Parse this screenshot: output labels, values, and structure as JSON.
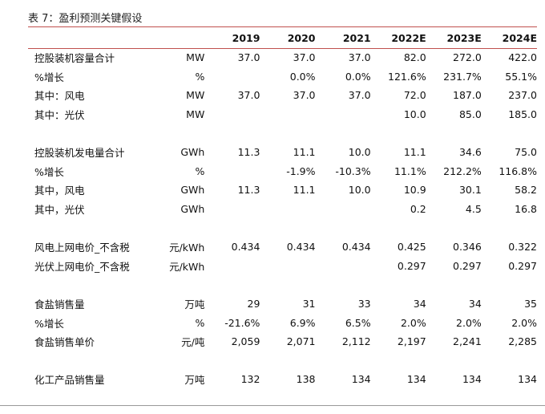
{
  "title": "表 7：盈利预测关键假设",
  "headers": [
    "2019",
    "2020",
    "2021",
    "2022E",
    "2023E",
    "2024E"
  ],
  "groups": [
    [
      {
        "label": "控股装机容量合计",
        "unit": "MW",
        "values": [
          "37.0",
          "37.0",
          "37.0",
          "82.0",
          "272.0",
          "422.0"
        ]
      },
      {
        "label": "%增长",
        "unit": "%",
        "values": [
          "",
          "0.0%",
          "0.0%",
          "121.6%",
          "231.7%",
          "55.1%"
        ]
      },
      {
        "label": "其中：风电",
        "unit": "MW",
        "values": [
          "37.0",
          "37.0",
          "37.0",
          "72.0",
          "187.0",
          "237.0"
        ]
      },
      {
        "label": "其中：光伏",
        "unit": "MW",
        "values": [
          "",
          "",
          "",
          "10.0",
          "85.0",
          "185.0"
        ]
      }
    ],
    [
      {
        "label": "控股装机发电量合计",
        "unit": "GWh",
        "values": [
          "11.3",
          "11.1",
          "10.0",
          "11.1",
          "34.6",
          "75.0"
        ]
      },
      {
        "label": "%增长",
        "unit": "%",
        "values": [
          "",
          "-1.9%",
          "-10.3%",
          "11.1%",
          "212.2%",
          "116.8%"
        ]
      },
      {
        "label": "其中，风电",
        "unit": "GWh",
        "values": [
          "11.3",
          "11.1",
          "10.0",
          "10.9",
          "30.1",
          "58.2"
        ]
      },
      {
        "label": "其中，光伏",
        "unit": "GWh",
        "values": [
          "",
          "",
          "",
          "0.2",
          "4.5",
          "16.8"
        ]
      }
    ],
    [
      {
        "label": "风电上网电价_不含税",
        "unit": "元/kWh",
        "values": [
          "0.434",
          "0.434",
          "0.434",
          "0.425",
          "0.346",
          "0.322"
        ]
      },
      {
        "label": "光伏上网电价_不含税",
        "unit": "元/kWh",
        "values": [
          "",
          "",
          "",
          "0.297",
          "0.297",
          "0.297"
        ]
      }
    ],
    [
      {
        "label": "食盐销售量",
        "unit": "万吨",
        "values": [
          "29",
          "31",
          "33",
          "34",
          "34",
          "35"
        ]
      },
      {
        "label": "%增长",
        "unit": "%",
        "values": [
          "-21.6%",
          "6.9%",
          "6.5%",
          "2.0%",
          "2.0%",
          "2.0%"
        ]
      },
      {
        "label": "食盐销售单价",
        "unit": "元/吨",
        "values": [
          "2,059",
          "2,071",
          "2,112",
          "2,197",
          "2,241",
          "2,285"
        ]
      }
    ],
    [
      {
        "label": "化工产品销售量",
        "unit": "万吨",
        "values": [
          "132",
          "138",
          "134",
          "134",
          "134",
          "134"
        ]
      }
    ]
  ]
}
